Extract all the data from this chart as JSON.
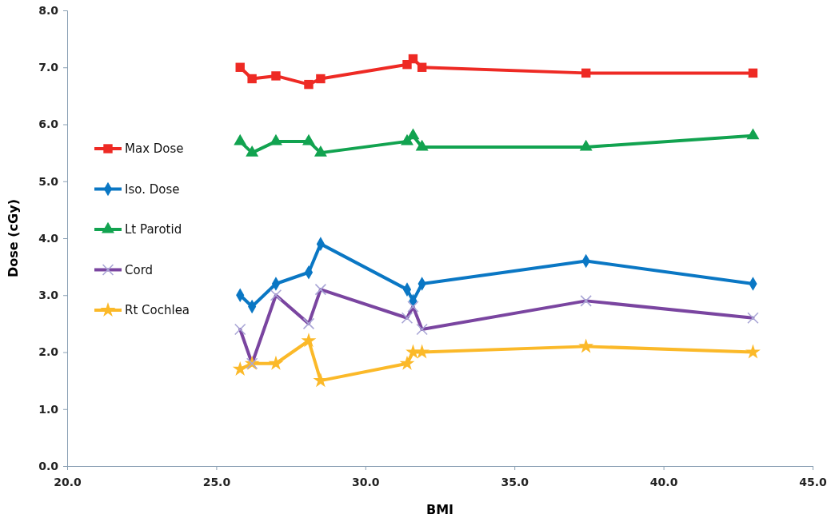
{
  "chart_data": {
    "type": "line",
    "xlabel": "BMI",
    "ylabel": "Dose (cGy)",
    "x": [
      25.8,
      26.2,
      27,
      28.1,
      28.5,
      31.4,
      31.6,
      31.9,
      37.4,
      43
    ],
    "xlim": [
      20,
      45
    ],
    "xticks": [
      {
        "value": 20,
        "label": "20.0"
      },
      {
        "value": 25,
        "label": "25.0"
      },
      {
        "value": 30,
        "label": "30.0"
      },
      {
        "value": 35,
        "label": "35.0"
      },
      {
        "value": 40,
        "label": "40.0"
      },
      {
        "value": 45,
        "label": "45.0"
      }
    ],
    "ylim": [
      0,
      8
    ],
    "yticks": [
      {
        "value": 0,
        "label": "0.0"
      },
      {
        "value": 1,
        "label": "1.0"
      },
      {
        "value": 2,
        "label": "2.0"
      },
      {
        "value": 3,
        "label": "3.0"
      },
      {
        "value": 4,
        "label": "4.0"
      },
      {
        "value": 5,
        "label": "5.0"
      },
      {
        "value": 6,
        "label": "6.0"
      },
      {
        "value": 7,
        "label": "7.0"
      },
      {
        "value": 8,
        "label": "8.0"
      }
    ],
    "grid": false,
    "legend": "left",
    "line_style": "solid",
    "series": [
      {
        "name": "Max Dose",
        "color": "#ee2a24",
        "marker": "square",
        "values": [
          7.0,
          6.8,
          6.85,
          6.7,
          6.8,
          7.05,
          7.15,
          7.0,
          6.9,
          6.9
        ]
      },
      {
        "name": "Iso. Dose",
        "color": "#0a77c4",
        "marker": "diamond",
        "values": [
          3.0,
          2.8,
          3.2,
          3.4,
          3.9,
          3.1,
          2.9,
          3.2,
          3.6,
          3.2
        ]
      },
      {
        "name": "Lt Parotid",
        "color": "#12a350",
        "marker": "triangle",
        "values": [
          5.7,
          5.5,
          5.7,
          5.7,
          5.5,
          5.7,
          5.8,
          5.6,
          5.6,
          5.8
        ]
      },
      {
        "name": "Cord",
        "color": "#7a45a0",
        "marker": "cross",
        "values": [
          2.4,
          1.8,
          3.0,
          2.5,
          3.1,
          2.6,
          2.8,
          2.4,
          2.9,
          2.6
        ]
      },
      {
        "name": "Rt Cochlea",
        "color": "#fbb929",
        "marker": "star",
        "values": [
          1.7,
          1.8,
          1.8,
          2.2,
          1.5,
          1.8,
          2.0,
          2.0,
          2.1,
          2.0
        ]
      }
    ]
  }
}
